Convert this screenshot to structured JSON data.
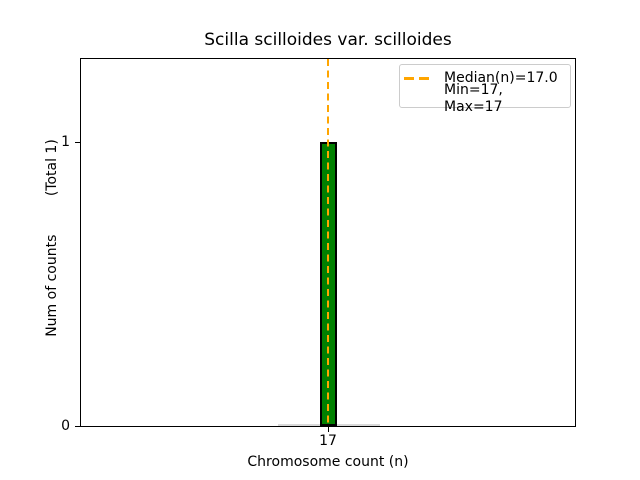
{
  "figure": {
    "title": "Scilla scilloides var. scilloides",
    "xlabel": "Chromosome count (n)",
    "ylabel": {
      "main": "Num of counts",
      "total": "(Total 1)"
    },
    "ticks": {
      "y0": "0",
      "y1": "1",
      "x0": "17"
    },
    "legend": {
      "median": "Median(n)=17.0",
      "minmax": "Min=17, Max=17"
    },
    "colors": {
      "bar_fill": "#008000",
      "bar_edge": "#000000",
      "median_line": "#FFA500",
      "legend_border": "#cccccc",
      "zero_bin_edge": "#d9d9d9",
      "axis": "#000000",
      "background": "#ffffff"
    }
  },
  "chart_data": {
    "type": "bar",
    "title": "Scilla scilloides var. scilloides",
    "xlabel": "Chromosome count (n)",
    "ylabel": "Num of counts (Total 1)",
    "categories": [
      17
    ],
    "values": [
      1
    ],
    "xticks": [
      17
    ],
    "yticks": [
      0,
      1
    ],
    "ylim": [
      0,
      1.3
    ],
    "annotations": {
      "median_n": 17.0,
      "min_n": 17,
      "max_n": 17,
      "total_counts": 1
    },
    "legend_entries": [
      "Median(n)=17.0",
      "Min=17, Max=17"
    ],
    "legend_position": "upper right",
    "grid": false,
    "bar_color": "#008000",
    "bar_edge_color": "#000000",
    "median_line_color": "#FFA500",
    "median_line_style": "dashed",
    "median_line_x": 17.0
  }
}
